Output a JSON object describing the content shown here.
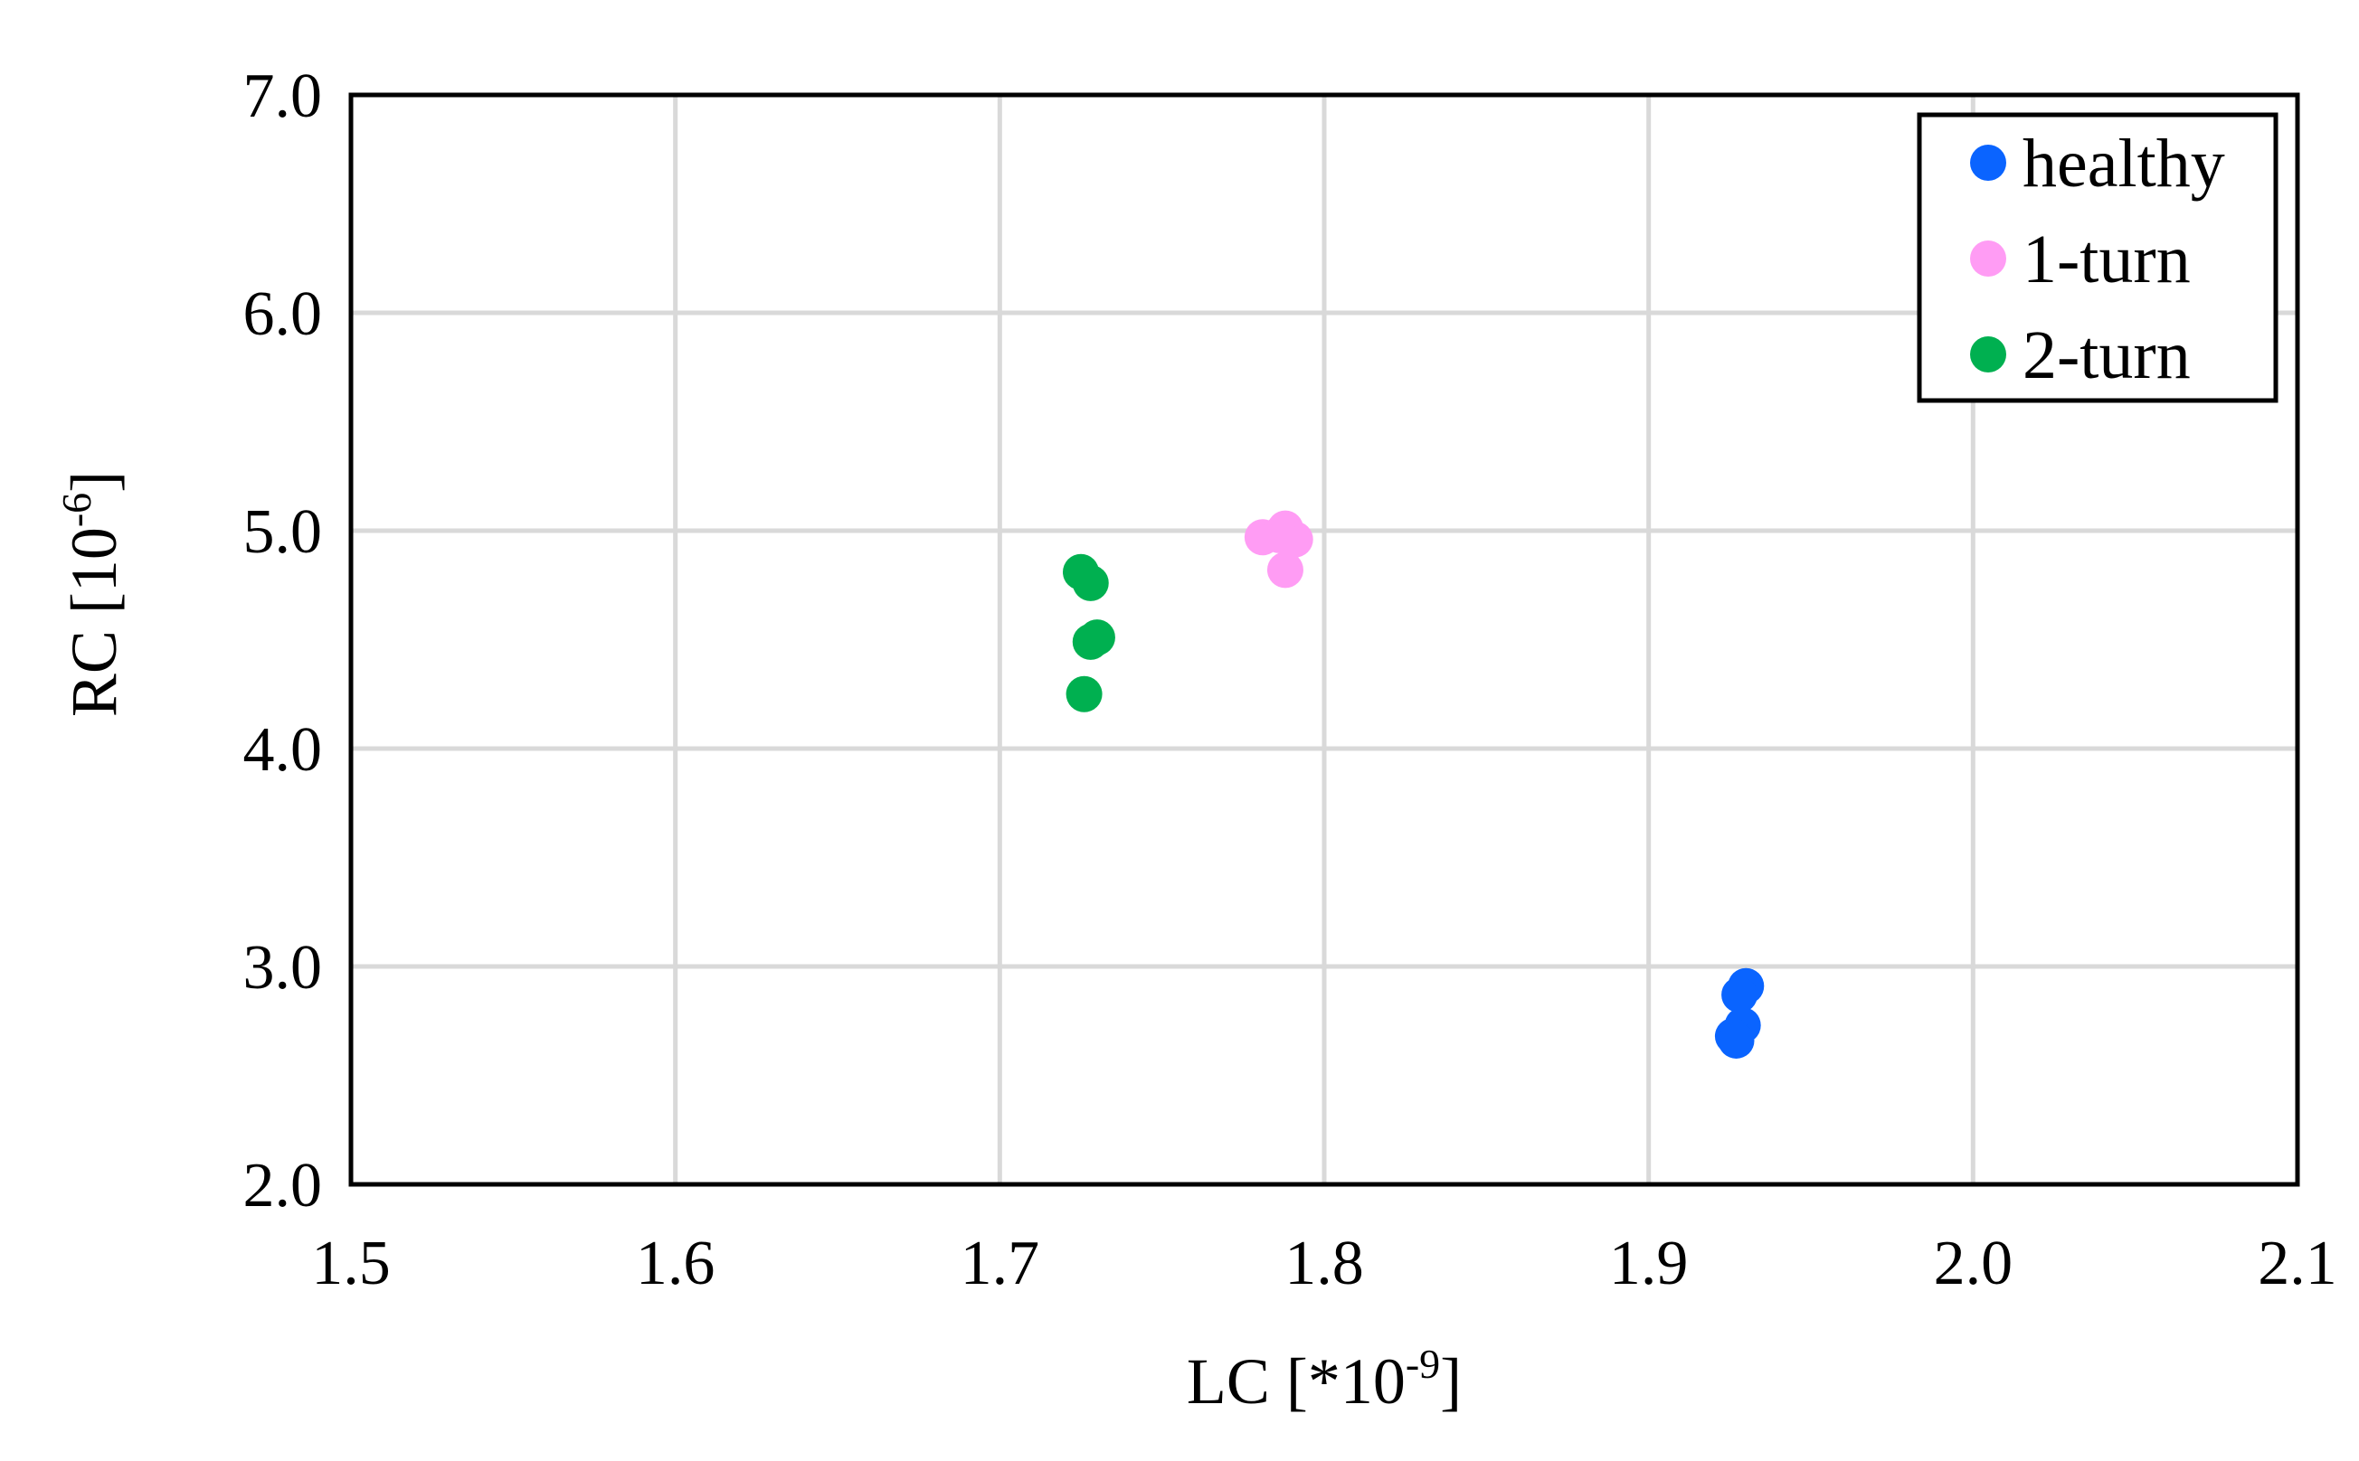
{
  "chart_data": {
    "type": "scatter",
    "title": "",
    "xlabel": "LC [*10",
    "xlabel_sup": "-9",
    "xlabel_end": "]",
    "ylabel": "RC [10",
    "ylabel_sup": "-6",
    "ylabel_end": "]",
    "xlim": [
      1.5,
      2.1
    ],
    "ylim": [
      2.0,
      7.0
    ],
    "xticks": [
      "1.5",
      "1.6",
      "1.7",
      "1.8",
      "1.9",
      "2.0",
      "2.1"
    ],
    "yticks": [
      "2.0",
      "3.0",
      "4.0",
      "5.0",
      "6.0",
      "7.0"
    ],
    "grid": true,
    "legend_position": "top-right",
    "series": [
      {
        "name": "healthy",
        "color": "#0a64ff",
        "points": [
          {
            "x": 1.93,
            "y": 2.91
          },
          {
            "x": 1.928,
            "y": 2.87
          },
          {
            "x": 1.929,
            "y": 2.73
          },
          {
            "x": 1.926,
            "y": 2.68
          },
          {
            "x": 1.927,
            "y": 2.66
          }
        ]
      },
      {
        "name": "1-turn",
        "color": "#ff9cf4",
        "points": [
          {
            "x": 1.781,
            "y": 4.97
          },
          {
            "x": 1.788,
            "y": 5.01
          },
          {
            "x": 1.791,
            "y": 4.96
          },
          {
            "x": 1.786,
            "y": 4.98
          },
          {
            "x": 1.788,
            "y": 4.82
          }
        ]
      },
      {
        "name": "2-turn",
        "color": "#00b050",
        "points": [
          {
            "x": 1.725,
            "y": 4.81
          },
          {
            "x": 1.728,
            "y": 4.76
          },
          {
            "x": 1.73,
            "y": 4.51
          },
          {
            "x": 1.728,
            "y": 4.49
          },
          {
            "x": 1.726,
            "y": 4.25
          }
        ]
      }
    ]
  }
}
